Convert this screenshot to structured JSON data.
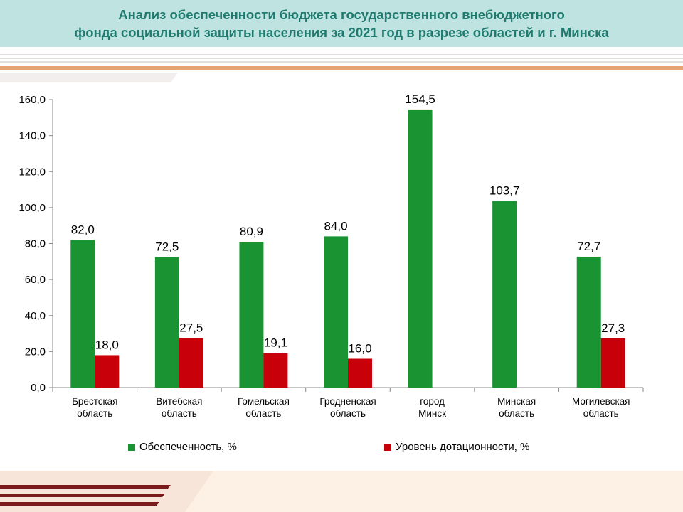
{
  "header": {
    "title_line1": "Анализ обеспеченности бюджета государственного внебюджетного",
    "title_line2": "фонда социальной защиты населения за 2021 год в разрезе областей и г. Минска"
  },
  "colors": {
    "header_bg": "#bfe3e1",
    "title_text": "#1f7b6f",
    "series_green": "#1a9433",
    "series_red": "#c8000a",
    "accent_orange": "#e8a374",
    "accent_maroon": "#7a1c1c"
  },
  "chart_data": {
    "type": "bar",
    "categories": [
      [
        "Брестская",
        "область"
      ],
      [
        "Витебская",
        "область"
      ],
      [
        "Гомельская",
        "область"
      ],
      [
        "Гродненская",
        "область"
      ],
      [
        "город",
        "Минск"
      ],
      [
        "Минская",
        "область"
      ],
      [
        "Могилевская",
        "область"
      ]
    ],
    "series": [
      {
        "name": "Обеспеченность, %",
        "color": "#1a9433",
        "values": [
          82.0,
          72.5,
          80.9,
          84.0,
          154.5,
          103.7,
          72.7
        ],
        "labels": [
          "82,0",
          "72,5",
          "80,9",
          "84,0",
          "154,5",
          "103,7",
          "72,7"
        ]
      },
      {
        "name": "Уровень дотационности, %",
        "color": "#c8000a",
        "values": [
          18.0,
          27.5,
          19.1,
          16.0,
          null,
          null,
          27.3
        ],
        "labels": [
          "18,0",
          "27,5",
          "19,1",
          "16,0",
          "",
          "",
          "27,3"
        ]
      }
    ],
    "yticks": [
      "0,0",
      "20,0",
      "40,0",
      "60,0",
      "80,0",
      "100,0",
      "120,0",
      "140,0",
      "160,0"
    ],
    "ylim": [
      0,
      160
    ],
    "grid": false,
    "legend_position": "bottom"
  }
}
